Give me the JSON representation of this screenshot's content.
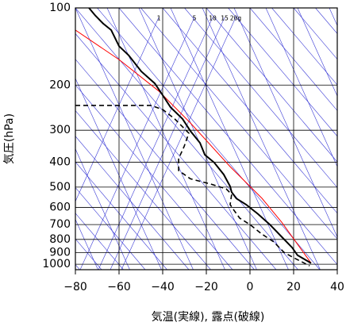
{
  "chart_data": {
    "type": "skewt",
    "x_label": "気温(実線), 露点(破線)",
    "y_label": "気圧(hPa)",
    "xlim": [
      -80,
      40
    ],
    "xticks": [
      {
        "value": -80,
        "label": "−80"
      },
      {
        "value": -60,
        "label": "−60"
      },
      {
        "value": -40,
        "label": "−40"
      },
      {
        "value": -20,
        "label": "−20"
      },
      0,
      20,
      40
    ],
    "ylim": [
      1050,
      100
    ],
    "log_y": true,
    "yticks": [
      100,
      200,
      300,
      400,
      500,
      600,
      700,
      800,
      900,
      1000
    ],
    "grid": true,
    "mixing_ratio_labels": [
      "1",
      "5",
      "10",
      "15",
      "20g"
    ],
    "series": [
      {
        "color": "#ff0000",
        "dash": false,
        "x": [
          -80,
          -60,
          -41.8,
          -27.3,
          -9.1,
          5.5,
          14.5,
          28
        ],
        "values": [
          122,
          159,
          211,
          281,
          416,
          553,
          685,
          990
        ]
      },
      {
        "color": "#000000",
        "dash": false,
        "x": [
          -73.8,
          -70.9,
          -67.3,
          -63.6,
          -60,
          -55.6,
          -49.8,
          -43.6,
          -40,
          -36.4,
          -30.9,
          -27.3,
          -22.9,
          -20.7,
          -16.4,
          -12,
          -9.1,
          -8.4,
          -6.2,
          -1.8,
          3.6,
          9.1,
          14.5,
          19.3,
          21.8,
          28
        ],
        "values": [
          100,
          107,
          115,
          122,
          141,
          153,
          177,
          197,
          219,
          244,
          271,
          302,
          336,
          374,
          401,
          447,
          497,
          523,
          554,
          585,
          636,
          700,
          781,
          861,
          922,
          990
        ]
      },
      {
        "color": "#000000",
        "dash": true,
        "x": [
          -80,
          -45.5,
          -40,
          -34.5,
          -28,
          -30.2,
          -32.7,
          -32.7,
          -27.3,
          -18.2,
          -10.9,
          -8.4,
          -9.1,
          -7.3,
          -4.7,
          0,
          5.5,
          10.9,
          15.6,
          19.3,
          27.3
        ],
        "values": [
          240,
          240,
          249,
          271,
          308,
          348,
          387,
          431,
          464,
          486,
          508,
          534,
          585,
          616,
          661,
          700,
          763,
          818,
          899,
          936,
          1014
        ]
      }
    ]
  }
}
